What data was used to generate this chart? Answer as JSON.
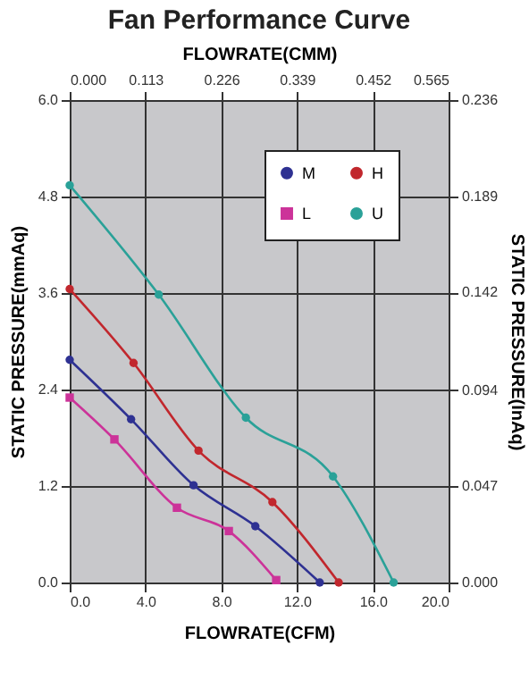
{
  "chart_data": {
    "type": "line",
    "title": "Fan Performance Curve",
    "xlabel": "FLOWRATE(CFM)",
    "x2label": "FLOWRATE(CMM)",
    "ylabel": "STATIC PRESSURE(mmAq)",
    "y2label": "STATIC PRESSURE(InAq)",
    "xlim": [
      0,
      20
    ],
    "xticks": [
      {
        "value": 0,
        "label": "0.0"
      },
      {
        "value": 4,
        "label": "4.0"
      },
      {
        "value": 8,
        "label": "8.0"
      },
      {
        "value": 12,
        "label": "12.0"
      },
      {
        "value": 16,
        "label": "16.0"
      },
      {
        "value": 20,
        "label": "20.0"
      }
    ],
    "x2lim": [
      0,
      0.565
    ],
    "x2ticks": [
      {
        "value": 0,
        "label": "0.000"
      },
      0.113,
      0.226,
      0.339,
      0.452,
      0.565
    ],
    "ylim": [
      0,
      6
    ],
    "yticks": [
      {
        "value": 0,
        "label": "0.0"
      },
      1.2,
      2.4,
      3.6,
      4.8,
      {
        "value": 6,
        "label": "6.0"
      }
    ],
    "y2lim": [
      0,
      0.236
    ],
    "y2ticks": [
      {
        "value": 0,
        "label": "0.000"
      },
      0.047,
      0.094,
      0.142,
      0.189,
      0.236
    ],
    "grid": true,
    "legend": "top right",
    "marker": "circle",
    "line_style": "solid",
    "series": [
      {
        "name": "M",
        "color": "#2e3192",
        "x": [
          0,
          3.24,
          6.54,
          9.8,
          13.2
        ],
        "values": [
          2.77,
          2.03,
          1.21,
          0.7,
          0
        ]
      },
      {
        "name": "L",
        "color": "#cc3399",
        "marker": "square",
        "x": [
          0,
          2.36,
          5.66,
          8.4,
          10.9
        ],
        "values": [
          2.3,
          1.78,
          0.93,
          0.64,
          0.03
        ]
      },
      {
        "name": "H",
        "color": "#c1272d",
        "x": [
          0,
          3.37,
          6.8,
          10.7,
          14.2
        ],
        "values": [
          3.65,
          2.73,
          1.64,
          1.0,
          0
        ]
      },
      {
        "name": "U",
        "color": "#2aa198",
        "x": [
          0,
          4.7,
          9.3,
          13.9,
          17.1
        ],
        "values": [
          4.94,
          3.58,
          2.05,
          1.32,
          0
        ]
      }
    ]
  }
}
